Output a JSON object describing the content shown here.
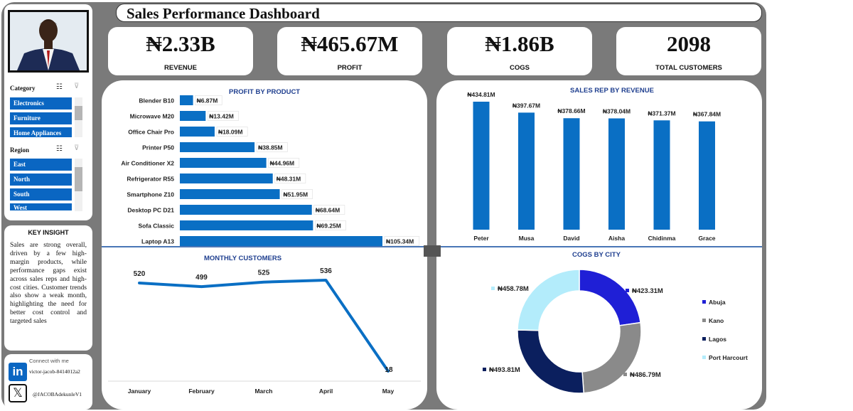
{
  "title": "Sales Performance Dashboard",
  "kpis": [
    {
      "value": "₦2.33B",
      "label": "REVENUE"
    },
    {
      "value": "₦465.67M",
      "label": "PROFIT"
    },
    {
      "value": "₦1.86B",
      "label": "COGS"
    },
    {
      "value": "2098",
      "label": "TOTAL CUSTOMERS"
    }
  ],
  "slicers": {
    "category": {
      "header": "Category",
      "items": [
        "Electronics",
        "Furniture",
        "Home Appliances"
      ]
    },
    "region": {
      "header": "Region",
      "items": [
        "East",
        "North",
        "South",
        "West"
      ]
    }
  },
  "insight": {
    "title": "KEY INSIGHT",
    "text": "Sales are strong overall, driven by a few high-margin products, while performance gaps exist across sales reps and high-cost cities. Customer trends also show a weak month, highlighting the need for better cost control and targeted sales"
  },
  "connect": {
    "title": "Connect with me",
    "linkedin": "victor-jacob-8414012a2",
    "x": "@JACOBAdekunleV1"
  },
  "colors": {
    "accent": "#0a6fc4",
    "frame": "#7a7a7a",
    "title_blue": "#1f3f8f"
  },
  "chart_data": [
    {
      "type": "bar",
      "orientation": "horizontal",
      "title": "PROFIT BY PRODUCT",
      "categories": [
        "Blender B10",
        "Microwave M20",
        "Office Chair Pro",
        "Printer P50",
        "Air Conditioner X2",
        "Refrigerator R55",
        "Smartphone Z10",
        "Desktop PC D21",
        "Sofa Classic",
        "Laptop A13"
      ],
      "values": [
        6.87,
        13.42,
        18.09,
        38.85,
        44.96,
        48.31,
        51.95,
        68.64,
        69.25,
        105.34
      ],
      "labels": [
        "₦6.87M",
        "₦13.42M",
        "₦18.09M",
        "₦38.85M",
        "₦44.96M",
        "₦48.31M",
        "₦51.95M",
        "₦68.64M",
        "₦69.25M",
        "₦105.34M"
      ]
    },
    {
      "type": "bar",
      "title": "SALES REP BY REVENUE",
      "categories": [
        "Peter",
        "Musa",
        "David",
        "Aisha",
        "Chidinma",
        "Grace"
      ],
      "values": [
        434.81,
        397.67,
        378.66,
        378.04,
        371.37,
        367.84
      ],
      "labels": [
        "₦434.81M",
        "₦397.67M",
        "₦378.66M",
        "₦378.04M",
        "₦371.37M",
        "₦367.84M"
      ]
    },
    {
      "type": "line",
      "title": "MONTHLY CUSTOMERS",
      "categories": [
        "January",
        "February",
        "March",
        "April",
        "May"
      ],
      "values": [
        520,
        499,
        525,
        536,
        18
      ],
      "labels": [
        "520",
        "499",
        "525",
        "536",
        "18"
      ]
    },
    {
      "type": "pie",
      "subtype": "donut",
      "title": "COGS BY CITY",
      "categories": [
        "Abuja",
        "Kano",
        "Lagos",
        "Port Harcourt"
      ],
      "values": [
        423.31,
        486.79,
        493.81,
        458.78
      ],
      "labels": [
        "₦423.31M",
        "₦486.79M",
        "₦493.81M",
        "₦458.78M"
      ],
      "colors": [
        "#1f1fd6",
        "#8a8a8a",
        "#0b1f5e",
        "#b3ecfb"
      ],
      "legend_position": "right"
    }
  ]
}
